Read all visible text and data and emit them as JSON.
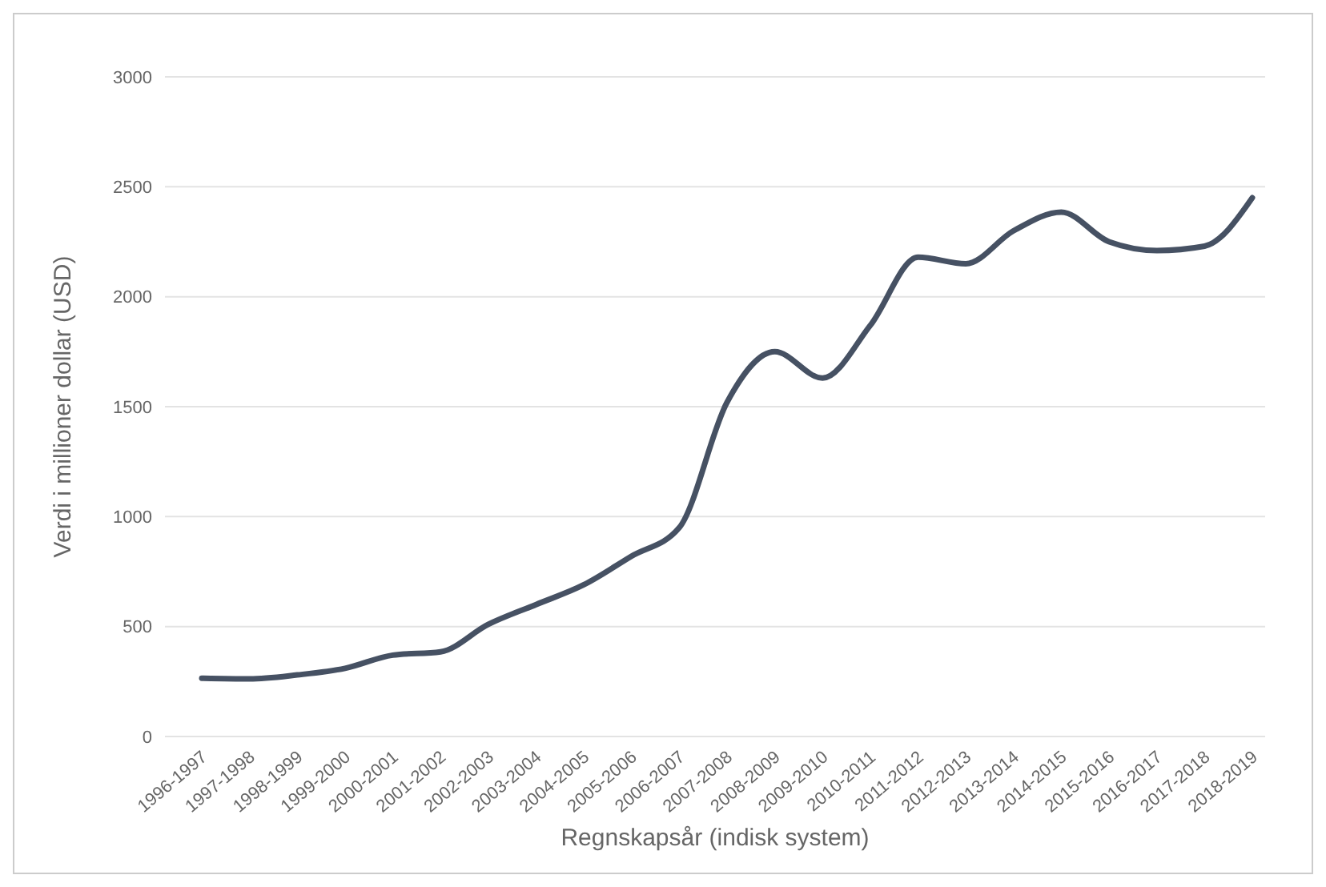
{
  "chart_data": {
    "type": "line",
    "xlabel": "Regnskapsår (indisk system)",
    "ylabel": "Verdi i millioner dollar (USD)",
    "categories": [
      "1996-1997",
      "1997-1998",
      "1998-1999",
      "1999-2000",
      "2000-2001",
      "2001-2002",
      "2002-2003",
      "2003-2004",
      "2004-2005",
      "2005-2006",
      "2006-2007",
      "2007-2008",
      "2008-2009",
      "2009-2010",
      "2010-2011",
      "2011-2012",
      "2012-2013",
      "2013-2014",
      "2014-2015",
      "2015-2016",
      "2016-2017",
      "2017-2018",
      "2018-2019"
    ],
    "series": [
      {
        "color": "#465163",
        "values": [
          265,
          262,
          280,
          310,
          370,
          385,
          510,
          600,
          690,
          820,
          950,
          1520,
          1750,
          1630,
          1870,
          2180,
          2150,
          2300,
          2385,
          2250,
          2210,
          2230,
          2450
        ]
      }
    ],
    "ylim": [
      0,
      3000
    ],
    "yticks": [
      0,
      500,
      1000,
      1500,
      2000,
      2500,
      3000
    ],
    "grid": "y",
    "marker": "none",
    "line_style": "solid"
  }
}
